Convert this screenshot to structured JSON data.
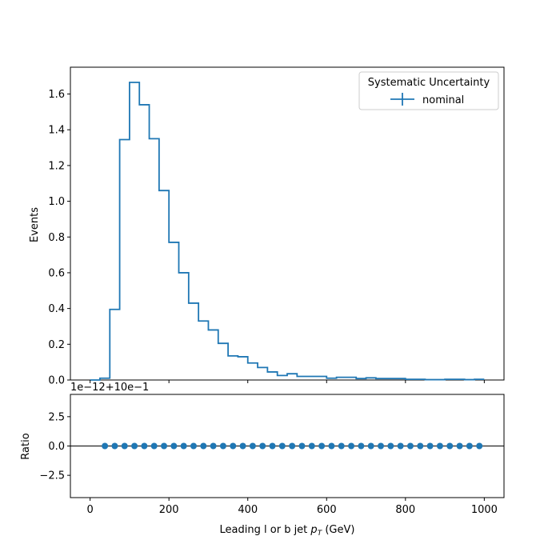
{
  "chart_data": [
    {
      "type": "line",
      "panel": "main",
      "drawstyle": "step",
      "ylabel": "Events",
      "ylim": [
        0.0,
        1.75
      ],
      "xlim": [
        -50,
        1050
      ],
      "y_ticks": [
        "0.0",
        "0.2",
        "0.4",
        "0.6",
        "0.8",
        "1.0",
        "1.2",
        "1.4",
        "1.6"
      ],
      "grid": false,
      "legend_placement": "top-right",
      "legend_title": "Systematic Uncertainty",
      "bin_edges": [
        0,
        25,
        50,
        75,
        100,
        125,
        150,
        175,
        200,
        225,
        250,
        275,
        300,
        325,
        350,
        375,
        400,
        425,
        450,
        475,
        500,
        525,
        550,
        575,
        600,
        625,
        650,
        675,
        700,
        725,
        750,
        775,
        800,
        825,
        850,
        875,
        900,
        925,
        950,
        975,
        1000
      ],
      "series": [
        {
          "name": "nominal",
          "color": "#1f77b4",
          "values": [
            0.0,
            0.01,
            0.395,
            1.345,
            1.665,
            1.54,
            1.35,
            1.06,
            0.77,
            0.6,
            0.43,
            0.33,
            0.28,
            0.205,
            0.135,
            0.13,
            0.095,
            0.07,
            0.045,
            0.025,
            0.035,
            0.02,
            0.02,
            0.02,
            0.01,
            0.015,
            0.015,
            0.008,
            0.012,
            0.008,
            0.008,
            0.008,
            0.004,
            0.004,
            0.002,
            0.002,
            0.004,
            0.004,
            0.002,
            0.004
          ]
        }
      ]
    },
    {
      "type": "scatter",
      "panel": "ratio",
      "xlabel": "Leading l or b jet p_T (GeV)",
      "ylabel": "Ratio",
      "offset_label": "1e−12+10e−1",
      "ylim": [
        -4.4,
        4.4
      ],
      "xlim": [
        -50,
        1050
      ],
      "y_ticks": [
        "−2.5",
        "0.0",
        "2.5"
      ],
      "x_ticks": [
        "0",
        "200",
        "400",
        "600",
        "800",
        "1000"
      ],
      "grid": false,
      "reference_line": 0.0,
      "series": [
        {
          "name": "nominal",
          "color": "#1f77b4",
          "x": [
            37.5,
            62.5,
            87.5,
            112.5,
            137.5,
            162.5,
            187.5,
            212.5,
            237.5,
            262.5,
            287.5,
            312.5,
            337.5,
            362.5,
            387.5,
            412.5,
            437.5,
            462.5,
            487.5,
            512.5,
            537.5,
            562.5,
            587.5,
            612.5,
            637.5,
            662.5,
            687.5,
            712.5,
            737.5,
            762.5,
            787.5,
            812.5,
            837.5,
            862.5,
            887.5,
            912.5,
            937.5,
            962.5,
            987.5
          ],
          "values": [
            0,
            0,
            0,
            0,
            0,
            0,
            0,
            0,
            0,
            0,
            0,
            0,
            0,
            0,
            0,
            0,
            0,
            0,
            0,
            0,
            0,
            0,
            0,
            0,
            0,
            0,
            0,
            0,
            0,
            0,
            0,
            0,
            0,
            0,
            0,
            0,
            0,
            0,
            0
          ]
        }
      ]
    }
  ]
}
